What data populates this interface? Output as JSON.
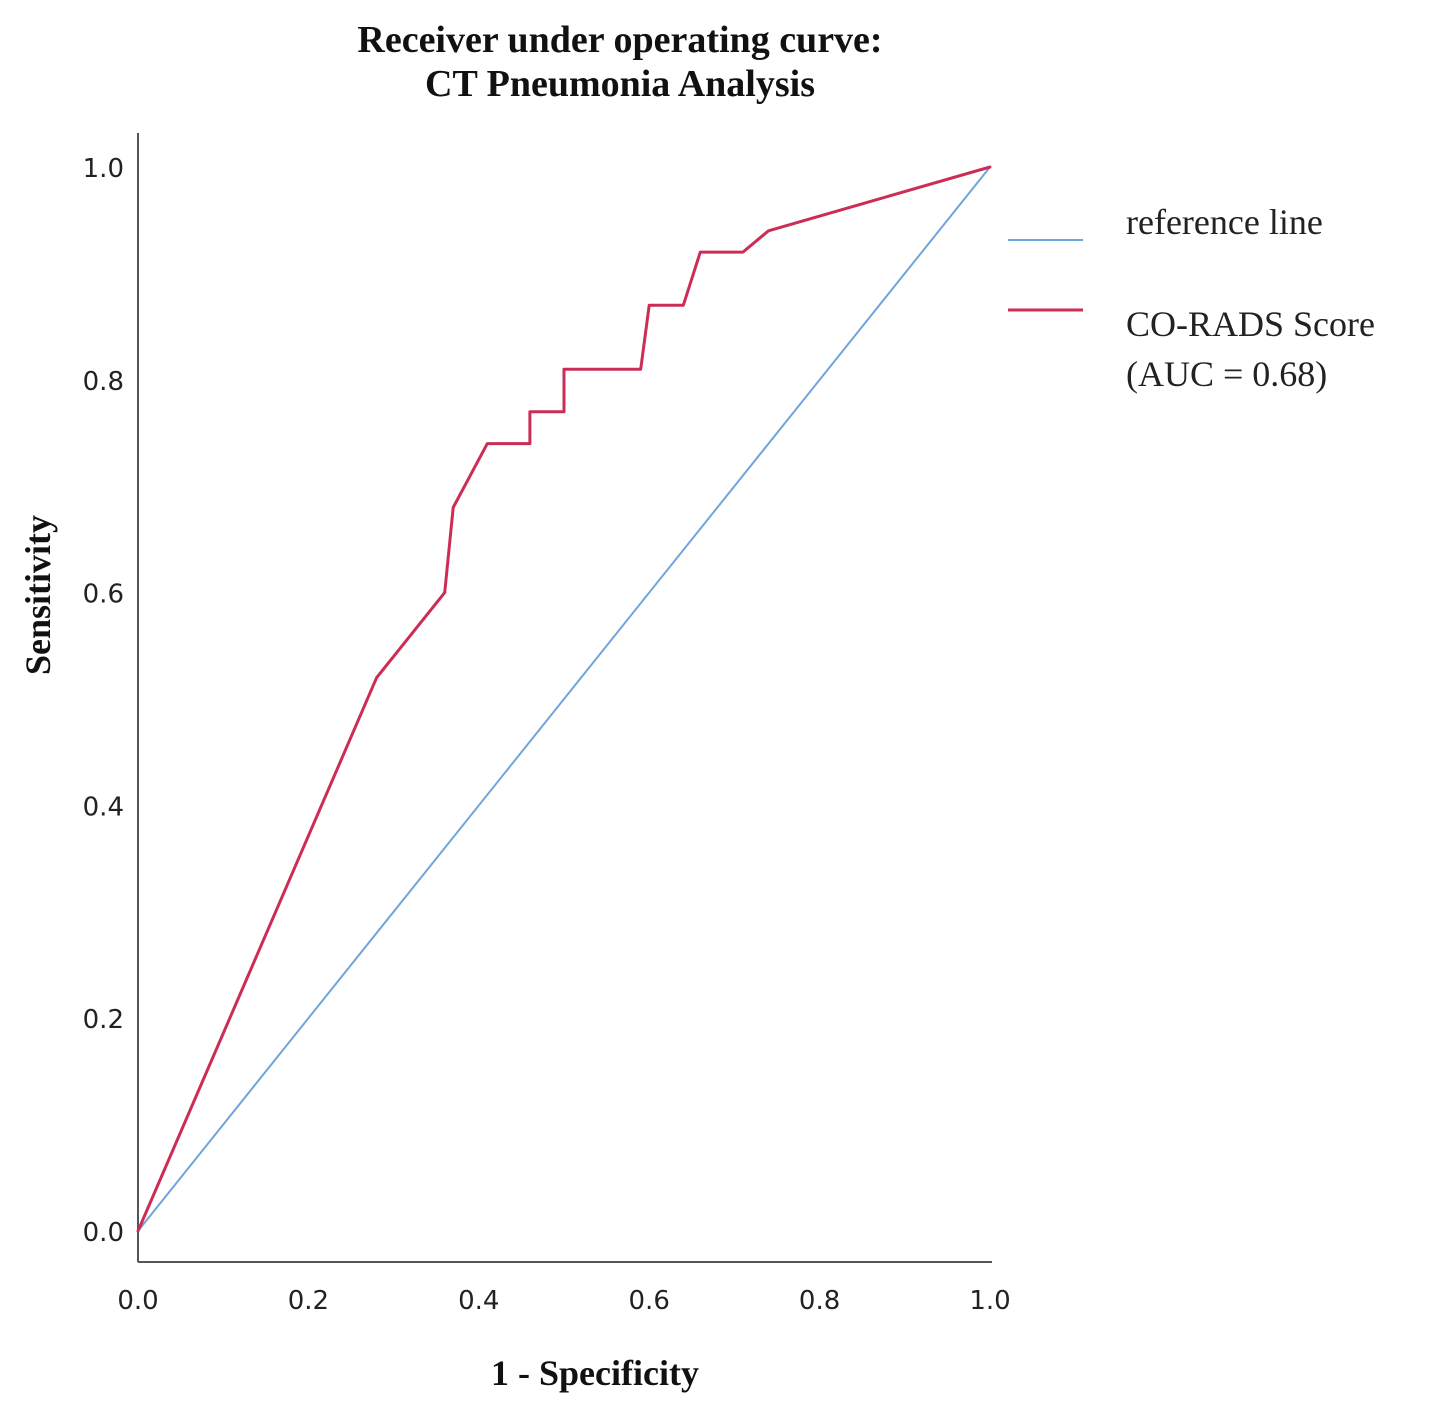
{
  "chart_data": {
    "type": "line",
    "title": [
      "Receiver under operating curve:",
      "CT Pneumonia Analysis"
    ],
    "xlabel": "1 - Specificity",
    "ylabel": "Sensitivity",
    "xlim": [
      0,
      1
    ],
    "ylim": [
      0,
      1
    ],
    "x_ticks": [
      "0.0",
      "0.2",
      "0.4",
      "0.6",
      "0.8",
      "1.0"
    ],
    "y_ticks": [
      "0.0",
      "0.2",
      "0.4",
      "0.6",
      "0.8",
      "1.0"
    ],
    "grid": false,
    "legend_position": "right",
    "series": [
      {
        "name": "reference line",
        "legend_lines": [
          "reference line"
        ],
        "color": "#6fa5d9",
        "x": [
          0.0,
          1.0
        ],
        "y": [
          0.0,
          1.0
        ]
      },
      {
        "name": "CO-RADS Score (AUC = 0.68)",
        "legend_lines": [
          "CO-RADS Score",
          "(AUC = 0.68)"
        ],
        "color": "#cc2d55",
        "x": [
          0.0,
          0.28,
          0.36,
          0.37,
          0.41,
          0.46,
          0.46,
          0.5,
          0.5,
          0.59,
          0.6,
          0.64,
          0.66,
          0.71,
          0.74,
          1.0
        ],
        "y": [
          0.0,
          0.52,
          0.6,
          0.68,
          0.74,
          0.74,
          0.77,
          0.77,
          0.81,
          0.81,
          0.87,
          0.87,
          0.92,
          0.92,
          0.94,
          1.0
        ]
      }
    ]
  }
}
